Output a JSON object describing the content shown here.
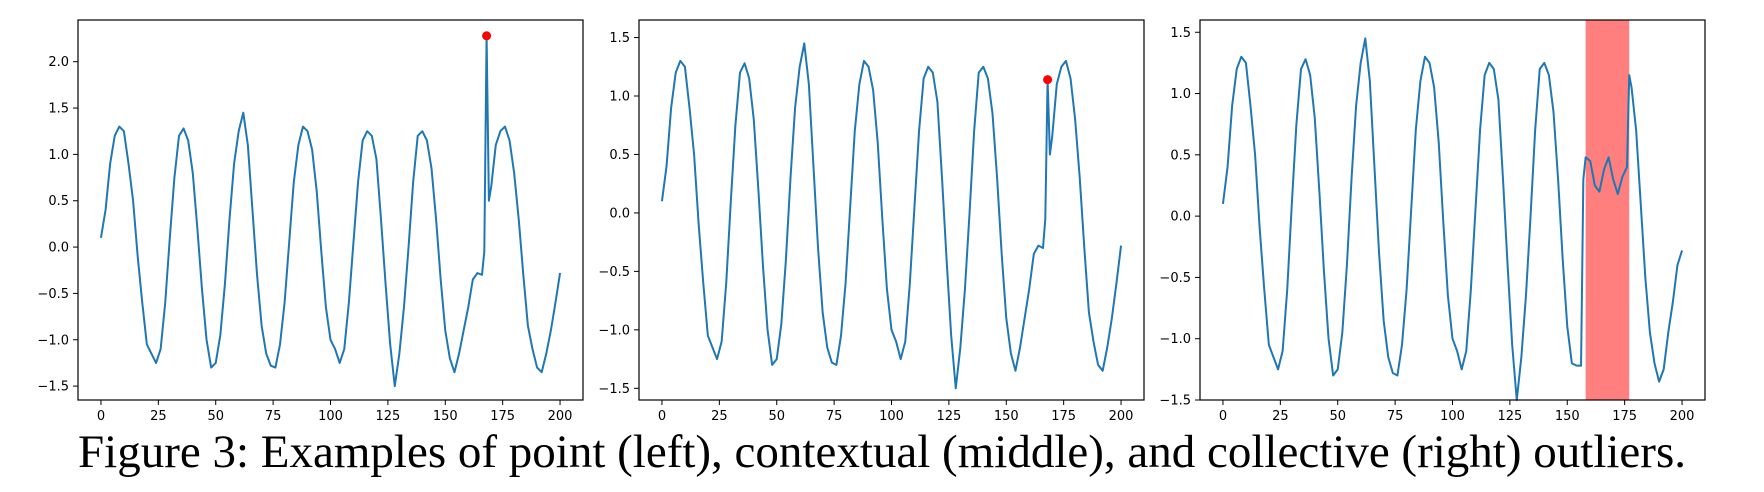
{
  "caption": "Figure 3: Examples of point (left), contextual (middle), and collective (right) outliers.",
  "colors": {
    "line": "#1f77b4",
    "outlier_point": "#ff0000",
    "outlier_region": "#ff7f7f",
    "frame": "#000000"
  },
  "chart_data": [
    {
      "type": "line",
      "title": "",
      "xlabel": "",
      "ylabel": "",
      "xlim": [
        -10,
        210
      ],
      "ylim": [
        -1.65,
        2.45
      ],
      "grid": false,
      "x_ticks": [
        0,
        25,
        50,
        75,
        100,
        125,
        150,
        175,
        200
      ],
      "x_tick_labels": [
        "0",
        "25",
        "50",
        "75",
        "100",
        "125",
        "150",
        "175",
        "200"
      ],
      "y_ticks": [
        -1.5,
        -1.0,
        -0.5,
        0.0,
        0.5,
        1.0,
        1.5,
        2.0
      ],
      "y_tick_labels": [
        "−1.5",
        "−1.0",
        "−0.5",
        "0.0",
        "0.5",
        "1.0",
        "1.5",
        "2.0"
      ],
      "series": [
        {
          "x": [
            0,
            2,
            4,
            6,
            8,
            10,
            12,
            14,
            16,
            18,
            20,
            22,
            24,
            26,
            28,
            30,
            32,
            34,
            36,
            38,
            40,
            42,
            44,
            46,
            48,
            50,
            52,
            54,
            56,
            58,
            60,
            62,
            64,
            66,
            68,
            70,
            72,
            74,
            76,
            78,
            80,
            82,
            84,
            86,
            88,
            90,
            92,
            94,
            96,
            98,
            100,
            102,
            104,
            106,
            108,
            110,
            112,
            114,
            116,
            118,
            120,
            122,
            124,
            126,
            128,
            130,
            132,
            134,
            136,
            138,
            140,
            142,
            144,
            146,
            148,
            150,
            152,
            154,
            156,
            158,
            160,
            162,
            164,
            166,
            167,
            168,
            169,
            170,
            172,
            174,
            176,
            178,
            180,
            182,
            184,
            186,
            188,
            190,
            192,
            194,
            196,
            198,
            200
          ],
          "y": [
            0.1,
            0.4,
            0.9,
            1.2,
            1.3,
            1.25,
            0.9,
            0.5,
            -0.1,
            -0.6,
            -1.05,
            -1.15,
            -1.25,
            -1.1,
            -0.6,
            0.1,
            0.75,
            1.2,
            1.28,
            1.15,
            0.8,
            0.2,
            -0.45,
            -1.0,
            -1.3,
            -1.25,
            -0.95,
            -0.4,
            0.3,
            0.9,
            1.25,
            1.45,
            1.1,
            0.4,
            -0.3,
            -0.85,
            -1.15,
            -1.28,
            -1.3,
            -1.05,
            -0.6,
            0.05,
            0.7,
            1.1,
            1.3,
            1.25,
            1.05,
            0.6,
            -0.05,
            -0.65,
            -1.0,
            -1.1,
            -1.25,
            -1.1,
            -0.6,
            0.05,
            0.7,
            1.15,
            1.25,
            1.2,
            0.95,
            0.3,
            -0.4,
            -1.05,
            -1.5,
            -1.15,
            -0.65,
            0.0,
            0.7,
            1.2,
            1.25,
            1.15,
            0.85,
            0.3,
            -0.35,
            -0.9,
            -1.2,
            -1.35,
            -1.15,
            -0.9,
            -0.65,
            -0.35,
            -0.28,
            -0.3,
            -0.05,
            2.28,
            0.5,
            0.65,
            1.1,
            1.25,
            1.3,
            1.15,
            0.8,
            0.3,
            -0.3,
            -0.85,
            -1.1,
            -1.3,
            -1.35,
            -1.15,
            -0.9,
            -0.6,
            -0.28
          ]
        }
      ],
      "highlight_points": [
        {
          "x": 168,
          "y": 2.28
        }
      ]
    },
    {
      "type": "line",
      "title": "",
      "xlabel": "",
      "ylabel": "",
      "xlim": [
        -10,
        210
      ],
      "ylim": [
        -1.6,
        1.65
      ],
      "grid": false,
      "x_ticks": [
        0,
        25,
        50,
        75,
        100,
        125,
        150,
        175,
        200
      ],
      "x_tick_labels": [
        "0",
        "25",
        "50",
        "75",
        "100",
        "125",
        "150",
        "175",
        "200"
      ],
      "y_ticks": [
        -1.5,
        -1.0,
        -0.5,
        0.0,
        0.5,
        1.0,
        1.5
      ],
      "y_tick_labels": [
        "−1.5",
        "−1.0",
        "−0.5",
        "0.0",
        "0.5",
        "1.0",
        "1.5"
      ],
      "series": [
        {
          "x": [
            0,
            2,
            4,
            6,
            8,
            10,
            12,
            14,
            16,
            18,
            20,
            22,
            24,
            26,
            28,
            30,
            32,
            34,
            36,
            38,
            40,
            42,
            44,
            46,
            48,
            50,
            52,
            54,
            56,
            58,
            60,
            62,
            64,
            66,
            68,
            70,
            72,
            74,
            76,
            78,
            80,
            82,
            84,
            86,
            88,
            90,
            92,
            94,
            96,
            98,
            100,
            102,
            104,
            106,
            108,
            110,
            112,
            114,
            116,
            118,
            120,
            122,
            124,
            126,
            128,
            130,
            132,
            134,
            136,
            138,
            140,
            142,
            144,
            146,
            148,
            150,
            152,
            154,
            156,
            158,
            160,
            162,
            164,
            166,
            167,
            168,
            169,
            170,
            172,
            174,
            176,
            178,
            180,
            182,
            184,
            186,
            188,
            190,
            192,
            194,
            196,
            198,
            200
          ],
          "y": [
            0.1,
            0.4,
            0.9,
            1.2,
            1.3,
            1.25,
            0.9,
            0.5,
            -0.1,
            -0.6,
            -1.05,
            -1.15,
            -1.25,
            -1.1,
            -0.6,
            0.1,
            0.75,
            1.2,
            1.28,
            1.15,
            0.8,
            0.2,
            -0.45,
            -1.0,
            -1.3,
            -1.25,
            -0.95,
            -0.4,
            0.3,
            0.9,
            1.25,
            1.45,
            1.1,
            0.4,
            -0.3,
            -0.85,
            -1.15,
            -1.28,
            -1.3,
            -1.05,
            -0.6,
            0.05,
            0.7,
            1.1,
            1.3,
            1.25,
            1.05,
            0.6,
            -0.05,
            -0.65,
            -1.0,
            -1.1,
            -1.25,
            -1.1,
            -0.6,
            0.05,
            0.7,
            1.15,
            1.25,
            1.2,
            0.95,
            0.3,
            -0.4,
            -1.05,
            -1.5,
            -1.15,
            -0.65,
            0.0,
            0.7,
            1.2,
            1.25,
            1.15,
            0.85,
            0.3,
            -0.35,
            -0.9,
            -1.2,
            -1.35,
            -1.15,
            -0.9,
            -0.65,
            -0.35,
            -0.28,
            -0.3,
            -0.05,
            1.14,
            0.5,
            0.65,
            1.1,
            1.25,
            1.3,
            1.15,
            0.8,
            0.3,
            -0.3,
            -0.85,
            -1.1,
            -1.3,
            -1.35,
            -1.15,
            -0.9,
            -0.6,
            -0.28
          ]
        }
      ],
      "highlight_points": [
        {
          "x": 168,
          "y": 1.14
        }
      ]
    },
    {
      "type": "line",
      "title": "",
      "xlabel": "",
      "ylabel": "",
      "xlim": [
        -10,
        210
      ],
      "ylim": [
        -1.5,
        1.6
      ],
      "grid": false,
      "x_ticks": [
        0,
        25,
        50,
        75,
        100,
        125,
        150,
        175,
        200
      ],
      "x_tick_labels": [
        "0",
        "25",
        "50",
        "75",
        "100",
        "125",
        "150",
        "175",
        "200"
      ],
      "y_ticks": [
        -1.5,
        -1.0,
        -0.5,
        0.0,
        0.5,
        1.0,
        1.5
      ],
      "y_tick_labels": [
        "−1.5",
        "−1.0",
        "−0.5",
        "0.0",
        "0.5",
        "1.0",
        "1.5"
      ],
      "series": [
        {
          "x": [
            0,
            2,
            4,
            6,
            8,
            10,
            12,
            14,
            16,
            18,
            20,
            22,
            24,
            26,
            28,
            30,
            32,
            34,
            36,
            38,
            40,
            42,
            44,
            46,
            48,
            50,
            52,
            54,
            56,
            58,
            60,
            62,
            64,
            66,
            68,
            70,
            72,
            74,
            76,
            78,
            80,
            82,
            84,
            86,
            88,
            90,
            92,
            94,
            96,
            98,
            100,
            102,
            104,
            106,
            108,
            110,
            112,
            114,
            116,
            118,
            120,
            122,
            124,
            126,
            128,
            130,
            132,
            134,
            136,
            138,
            140,
            142,
            144,
            146,
            148,
            150,
            152,
            154,
            156,
            157,
            158,
            160,
            162,
            164,
            166,
            168,
            170,
            172,
            174,
            176,
            177,
            178,
            180,
            182,
            184,
            186,
            188,
            190,
            192,
            194,
            196,
            198,
            200
          ],
          "y": [
            0.1,
            0.4,
            0.9,
            1.2,
            1.3,
            1.25,
            0.9,
            0.5,
            -0.1,
            -0.6,
            -1.05,
            -1.15,
            -1.25,
            -1.1,
            -0.6,
            0.1,
            0.75,
            1.2,
            1.28,
            1.15,
            0.8,
            0.2,
            -0.45,
            -1.0,
            -1.3,
            -1.25,
            -0.95,
            -0.4,
            0.3,
            0.9,
            1.25,
            1.45,
            1.1,
            0.4,
            -0.3,
            -0.85,
            -1.15,
            -1.28,
            -1.3,
            -1.05,
            -0.6,
            0.05,
            0.7,
            1.1,
            1.3,
            1.25,
            1.05,
            0.6,
            -0.05,
            -0.65,
            -1.0,
            -1.1,
            -1.25,
            -1.1,
            -0.6,
            0.05,
            0.7,
            1.15,
            1.25,
            1.2,
            0.95,
            0.3,
            -0.4,
            -1.05,
            -1.5,
            -1.15,
            -0.65,
            0.0,
            0.7,
            1.2,
            1.25,
            1.15,
            0.85,
            0.3,
            -0.35,
            -0.9,
            -1.2,
            -1.22,
            -1.22,
            0.3,
            0.48,
            0.45,
            0.25,
            0.2,
            0.38,
            0.48,
            0.3,
            0.18,
            0.32,
            0.4,
            1.15,
            1.05,
            0.7,
            0.1,
            -0.5,
            -0.95,
            -1.2,
            -1.35,
            -1.25,
            -0.95,
            -0.7,
            -0.4,
            -0.28
          ]
        }
      ],
      "highlight_span": {
        "x0": 158,
        "x1": 177
      }
    }
  ]
}
